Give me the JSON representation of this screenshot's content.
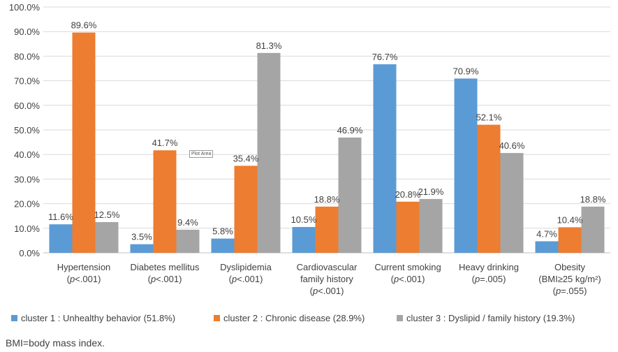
{
  "chart_data": {
    "type": "bar",
    "title": "",
    "xlabel": "",
    "ylabel": "",
    "ylim": [
      0,
      100
    ],
    "yticks": [
      "0.0%",
      "10.0%",
      "20.0%",
      "30.0%",
      "40.0%",
      "50.0%",
      "60.0%",
      "70.0%",
      "80.0%",
      "90.0%",
      "100.0%"
    ],
    "grid": true,
    "legend_position": "bottom",
    "categories": [
      {
        "lines": [
          "Hypertension"
        ],
        "p": [
          "(",
          "p",
          "<.001)"
        ]
      },
      {
        "lines": [
          "Diabetes mellitus"
        ],
        "p": [
          "(",
          "p",
          "<.001)"
        ]
      },
      {
        "lines": [
          "Dyslipidemia"
        ],
        "p": [
          "(",
          "p",
          "<.001)"
        ]
      },
      {
        "lines": [
          "Cardiovascular",
          "family history"
        ],
        "p": [
          "(",
          "p",
          "<.001)"
        ]
      },
      {
        "lines": [
          "Current smoking"
        ],
        "p": [
          "(",
          "p",
          "<.001)"
        ]
      },
      {
        "lines": [
          "Heavy drinking"
        ],
        "p": [
          "(",
          "p",
          "=.005)"
        ]
      },
      {
        "lines": [
          "Obesity",
          "(BMI≥25 kg/m²)"
        ],
        "p": [
          "(",
          "p",
          "=.055)"
        ]
      }
    ],
    "series": [
      {
        "name": "cluster 1 : Unhealthy behavior (51.8%)",
        "color": "#5b9bd5",
        "values": [
          11.6,
          3.5,
          5.8,
          10.5,
          76.7,
          70.9,
          4.7
        ],
        "labels": [
          "11.6%",
          "3.5%",
          "5.8%",
          "10.5%",
          "76.7%",
          "70.9%",
          "4.7%"
        ]
      },
      {
        "name": "cluster 2 : Chronic disease (28.9%)",
        "color": "#ed7d31",
        "values": [
          89.6,
          41.7,
          35.4,
          18.8,
          20.8,
          52.1,
          10.4
        ],
        "labels": [
          "89.6%",
          "41.7%",
          "35.4%",
          "18.8%",
          "20.8%",
          "52.1%",
          "10.4%"
        ]
      },
      {
        "name": "cluster 3 : Dyslipid / family history (19.3%)",
        "color": "#a5a5a5",
        "values": [
          12.5,
          9.4,
          81.3,
          46.9,
          21.9,
          40.6,
          18.8
        ],
        "labels": [
          "12.5%",
          "9.4%",
          "81.3%",
          "46.9%",
          "21.9%",
          "40.6%",
          "18.8%"
        ]
      }
    ],
    "annotation": "Plot Area"
  },
  "footnote": "BMI=body mass index."
}
